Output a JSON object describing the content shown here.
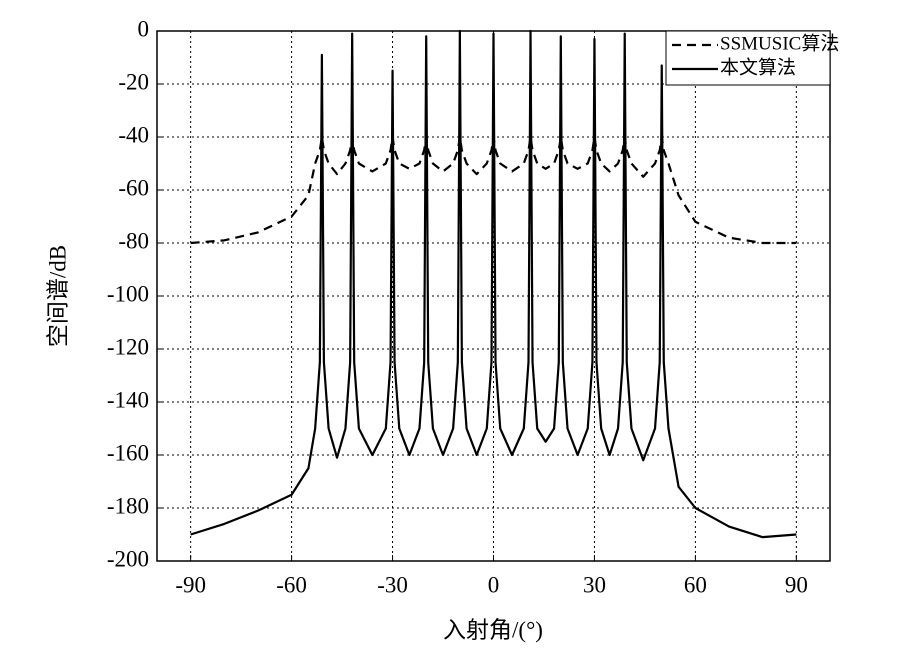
{
  "chart_data": {
    "type": "line",
    "xlabel": "入射角/(°)",
    "ylabel": "空间谱/dB",
    "x": [
      -90,
      -80,
      -70,
      -60,
      -55,
      -53,
      -51.6,
      -51,
      -50.4,
      -49,
      -46.5,
      -44,
      -42.6,
      -42,
      -41.4,
      -40,
      -36,
      -32,
      -30.6,
      -30,
      -29.4,
      -28,
      -25,
      -22,
      -20.6,
      -20,
      -19.4,
      -18,
      -15,
      -12,
      -10.6,
      -10,
      -9.4,
      -8,
      -5,
      -2,
      -0.6,
      0,
      0.6,
      2,
      5.5,
      9,
      10.4,
      11,
      11.6,
      13,
      15.5,
      18,
      19.4,
      20,
      20.6,
      22,
      25,
      28,
      29.4,
      30,
      30.6,
      32,
      34.5,
      37,
      38.4,
      39,
      39.6,
      41,
      44.5,
      48,
      49.4,
      50,
      50.6,
      52,
      55,
      60,
      70,
      80,
      90
    ],
    "series": [
      {
        "name": "SSMUSIC算法",
        "color": "#000000",
        "dash": true,
        "values": [
          -80,
          -79,
          -76,
          -70,
          -62,
          -50,
          -45,
          -40,
          -45,
          -50,
          -54,
          -50,
          -45,
          -40,
          -45,
          -50,
          -53,
          -50,
          -45,
          -40,
          -45,
          -50,
          -52,
          -50,
          -45,
          -40,
          -45,
          -50,
          -53,
          -50,
          -45,
          -40,
          -45,
          -50,
          -54,
          -50,
          -45,
          -40,
          -45,
          -50,
          -53,
          -50,
          -45,
          -40,
          -45,
          -50,
          -52,
          -50,
          -45,
          -40,
          -45,
          -50,
          -52,
          -50,
          -45,
          -40,
          -45,
          -50,
          -53,
          -50,
          -45,
          -40,
          -45,
          -50,
          -55,
          -50,
          -45,
          -40,
          -45,
          -50,
          -62,
          -72,
          -78,
          -80,
          -80
        ]
      },
      {
        "name": "本文算法",
        "color": "#000000",
        "dash": false,
        "values": [
          -190,
          -186,
          -181,
          -175,
          -165,
          -150,
          -125,
          -9,
          -125,
          -150,
          -161,
          -150,
          -125,
          -1,
          -125,
          -150,
          -160,
          -150,
          -125,
          -15,
          -125,
          -150,
          -160,
          -150,
          -125,
          -2,
          -125,
          -150,
          -160,
          -150,
          -125,
          0,
          -125,
          -150,
          -160,
          -150,
          -125,
          -1,
          -125,
          -150,
          -160,
          -150,
          -125,
          0,
          -125,
          -150,
          -155,
          -150,
          -125,
          -2,
          -125,
          -150,
          -160,
          -150,
          -125,
          -3,
          -125,
          -150,
          -160,
          -150,
          -125,
          -1,
          -125,
          -150,
          -162,
          -150,
          -125,
          -13,
          -125,
          -150,
          -172,
          -180,
          -187,
          -191,
          -190
        ]
      }
    ],
    "xlim": [
      -100,
      100
    ],
    "ylim": [
      -200,
      0
    ],
    "xticks": [
      -90,
      -60,
      -30,
      0,
      30,
      60,
      90
    ],
    "yticks": [
      0,
      -20,
      -40,
      -60,
      -80,
      -100,
      -120,
      -140,
      -160,
      -180,
      -200
    ],
    "grid": true,
    "legend": "upper right"
  }
}
